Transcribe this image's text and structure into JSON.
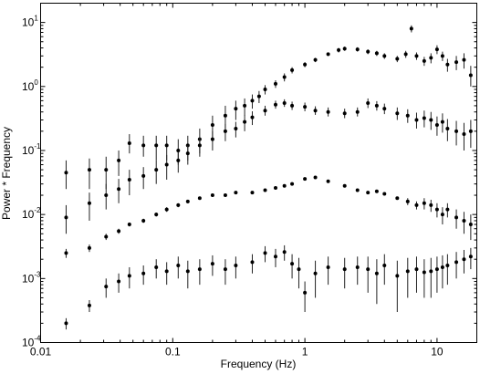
{
  "chart_data": {
    "type": "scatter",
    "title": "",
    "xlabel": "Frequency (Hz)",
    "ylabel": "Power * Frequency",
    "xscale": "log",
    "yscale": "log",
    "xlim": [
      0.01,
      20
    ],
    "ylim": [
      0.0001,
      20
    ],
    "grid": false,
    "legend": "none",
    "x_ticks": [
      {
        "value": 0.01,
        "label": "0.01"
      },
      {
        "value": 0.1,
        "label": "0.1"
      },
      {
        "value": 1,
        "label": "1"
      },
      {
        "value": 10,
        "label": "10"
      }
    ],
    "y_ticks": [
      {
        "value": 0.0001,
        "base": "10",
        "exp": "-4"
      },
      {
        "value": 0.001,
        "base": "10",
        "exp": "-3"
      },
      {
        "value": 0.01,
        "base": "10",
        "exp": "-2"
      },
      {
        "value": 0.1,
        "base": "10",
        "exp": "-1"
      },
      {
        "value": 1,
        "base": "10",
        "exp": "0"
      },
      {
        "value": 10,
        "base": "10",
        "exp": "1"
      }
    ],
    "series": [
      {
        "x": [
          0.0156,
          0.0234,
          0.0313,
          0.039,
          0.047,
          0.06,
          0.075,
          0.09,
          0.11,
          0.13,
          0.16,
          0.2,
          0.25,
          0.3,
          0.35,
          0.4,
          0.45,
          0.5,
          0.6,
          0.7,
          0.8,
          1.0,
          1.2,
          1.5,
          1.8,
          2.0,
          2.5,
          3.0,
          3.5,
          4.0,
          5.0,
          5.8,
          6.4,
          7.0,
          8.0,
          9.0,
          10.0,
          11.0,
          12.0,
          14.0,
          16.0,
          18.0
        ],
        "values": [
          0.045,
          0.05,
          0.05,
          0.07,
          0.13,
          0.12,
          0.12,
          0.12,
          0.1,
          0.12,
          0.15,
          0.25,
          0.35,
          0.45,
          0.5,
          0.6,
          0.7,
          0.9,
          1.1,
          1.4,
          1.8,
          2.2,
          2.6,
          3.2,
          3.7,
          3.9,
          3.8,
          3.5,
          3.3,
          3.0,
          2.7,
          3.2,
          8.0,
          3.0,
          2.5,
          2.8,
          3.8,
          3.0,
          2.2,
          2.4,
          2.6,
          1.5
        ],
        "err_low": [
          0.025,
          0.025,
          0.025,
          0.04,
          0.09,
          0.08,
          0.07,
          0.07,
          0.06,
          0.07,
          0.09,
          0.15,
          0.2,
          0.3,
          0.35,
          0.45,
          0.55,
          0.75,
          0.95,
          1.2,
          1.6,
          2.0,
          2.4,
          3.0,
          3.4,
          3.6,
          3.5,
          3.2,
          3.0,
          2.7,
          2.4,
          2.8,
          7.0,
          2.6,
          2.1,
          2.3,
          3.2,
          2.5,
          1.7,
          1.8,
          1.9,
          1.0
        ],
        "err_high": [
          0.07,
          0.075,
          0.08,
          0.1,
          0.18,
          0.17,
          0.17,
          0.17,
          0.15,
          0.17,
          0.22,
          0.35,
          0.5,
          0.6,
          0.65,
          0.75,
          0.85,
          1.05,
          1.25,
          1.6,
          2.0,
          2.4,
          2.8,
          3.4,
          4.0,
          4.2,
          4.1,
          3.8,
          3.6,
          3.3,
          3.0,
          3.6,
          9.0,
          3.4,
          2.9,
          3.3,
          4.4,
          3.5,
          2.7,
          3.0,
          3.3,
          2.1
        ]
      },
      {
        "x": [
          0.0156,
          0.0234,
          0.0313,
          0.039,
          0.047,
          0.06,
          0.075,
          0.09,
          0.11,
          0.13,
          0.16,
          0.2,
          0.25,
          0.3,
          0.35,
          0.4,
          0.5,
          0.6,
          0.7,
          0.8,
          1.0,
          1.2,
          1.5,
          2.0,
          2.5,
          3.0,
          3.5,
          4.0,
          5.0,
          6.0,
          7.0,
          8.0,
          9.0,
          10.0,
          11.0,
          12.0,
          14.0,
          16.0,
          18.0
        ],
        "values": [
          0.009,
          0.015,
          0.02,
          0.025,
          0.035,
          0.04,
          0.05,
          0.06,
          0.07,
          0.09,
          0.12,
          0.15,
          0.2,
          0.22,
          0.28,
          0.33,
          0.42,
          0.52,
          0.55,
          0.5,
          0.48,
          0.42,
          0.4,
          0.38,
          0.4,
          0.55,
          0.5,
          0.45,
          0.38,
          0.35,
          0.3,
          0.32,
          0.3,
          0.25,
          0.28,
          0.22,
          0.2,
          0.18,
          0.2
        ],
        "err_low": [
          0.005,
          0.008,
          0.012,
          0.015,
          0.02,
          0.025,
          0.03,
          0.035,
          0.045,
          0.06,
          0.08,
          0.1,
          0.14,
          0.16,
          0.2,
          0.25,
          0.35,
          0.45,
          0.48,
          0.43,
          0.41,
          0.36,
          0.34,
          0.32,
          0.34,
          0.46,
          0.42,
          0.37,
          0.3,
          0.27,
          0.22,
          0.23,
          0.21,
          0.17,
          0.19,
          0.14,
          0.12,
          0.1,
          0.11
        ],
        "err_high": [
          0.014,
          0.022,
          0.03,
          0.036,
          0.05,
          0.055,
          0.07,
          0.085,
          0.095,
          0.12,
          0.16,
          0.2,
          0.26,
          0.28,
          0.36,
          0.41,
          0.5,
          0.6,
          0.63,
          0.58,
          0.56,
          0.49,
          0.47,
          0.45,
          0.47,
          0.65,
          0.59,
          0.54,
          0.47,
          0.44,
          0.39,
          0.42,
          0.4,
          0.34,
          0.38,
          0.31,
          0.29,
          0.27,
          0.3
        ]
      },
      {
        "x": [
          0.0156,
          0.0234,
          0.0313,
          0.039,
          0.047,
          0.06,
          0.075,
          0.09,
          0.11,
          0.13,
          0.16,
          0.2,
          0.25,
          0.3,
          0.4,
          0.5,
          0.6,
          0.7,
          0.8,
          1.0,
          1.2,
          1.5,
          2.0,
          2.5,
          3.0,
          3.5,
          4.0,
          5.0,
          6.0,
          7.0,
          8.0,
          9.0,
          10.0,
          11.0,
          12.0,
          14.0,
          16.0,
          18.0
        ],
        "values": [
          0.0025,
          0.003,
          0.0045,
          0.0055,
          0.007,
          0.008,
          0.01,
          0.012,
          0.014,
          0.016,
          0.018,
          0.02,
          0.02,
          0.022,
          0.022,
          0.024,
          0.026,
          0.028,
          0.03,
          0.036,
          0.038,
          0.033,
          0.028,
          0.024,
          0.022,
          0.023,
          0.021,
          0.018,
          0.016,
          0.014,
          0.015,
          0.014,
          0.012,
          0.01,
          0.012,
          0.009,
          0.008,
          0.007
        ],
        "err_low": [
          0.0021,
          0.0026,
          0.004,
          0.005,
          0.0065,
          0.0074,
          0.0093,
          0.011,
          0.013,
          0.015,
          0.017,
          0.019,
          0.019,
          0.021,
          0.021,
          0.023,
          0.025,
          0.027,
          0.029,
          0.035,
          0.037,
          0.032,
          0.027,
          0.023,
          0.021,
          0.022,
          0.02,
          0.017,
          0.014,
          0.012,
          0.012,
          0.011,
          0.009,
          0.007,
          0.009,
          0.006,
          0.005,
          0.004
        ],
        "err_high": [
          0.0029,
          0.0034,
          0.005,
          0.006,
          0.0075,
          0.0086,
          0.0107,
          0.013,
          0.015,
          0.017,
          0.019,
          0.021,
          0.021,
          0.023,
          0.023,
          0.025,
          0.027,
          0.029,
          0.031,
          0.037,
          0.039,
          0.034,
          0.029,
          0.025,
          0.023,
          0.024,
          0.022,
          0.019,
          0.018,
          0.016,
          0.018,
          0.017,
          0.015,
          0.013,
          0.015,
          0.012,
          0.011,
          0.01
        ]
      },
      {
        "x": [
          0.0156,
          0.0234,
          0.0313,
          0.039,
          0.047,
          0.06,
          0.075,
          0.09,
          0.11,
          0.13,
          0.16,
          0.2,
          0.25,
          0.3,
          0.4,
          0.5,
          0.6,
          0.7,
          0.8,
          0.9,
          1.0,
          1.2,
          1.5,
          2.0,
          2.5,
          3.0,
          3.5,
          4.0,
          5.0,
          6.0,
          7.0,
          8.0,
          9.0,
          10.0,
          11.0,
          12.0,
          14.0,
          16.0,
          18.0
        ],
        "values": [
          0.0002,
          0.00038,
          0.00075,
          0.0009,
          0.0011,
          0.0012,
          0.0015,
          0.0013,
          0.0016,
          0.0013,
          0.0014,
          0.0017,
          0.0014,
          0.0016,
          0.0018,
          0.0025,
          0.0022,
          0.0026,
          0.0017,
          0.0014,
          0.0006,
          0.0012,
          0.0015,
          0.0014,
          0.0015,
          0.0014,
          0.0012,
          0.0016,
          0.0011,
          0.0013,
          0.0014,
          0.00125,
          0.0013,
          0.0014,
          0.0015,
          0.0016,
          0.0018,
          0.002,
          0.0022
        ],
        "err_low": [
          0.00016,
          0.0003,
          0.0005,
          0.0006,
          0.0007,
          0.0008,
          0.001,
          0.0008,
          0.001,
          0.0007,
          0.0008,
          0.0011,
          0.0008,
          0.001,
          0.0012,
          0.0018,
          0.0015,
          0.0019,
          0.001,
          0.0007,
          0.0003,
          0.0005,
          0.0008,
          0.0007,
          0.0008,
          0.0006,
          0.0004,
          0.0008,
          0.0003,
          0.0005,
          0.0006,
          0.0005,
          0.0005,
          0.0006,
          0.0007,
          0.0008,
          0.001,
          0.0012,
          0.0014
        ],
        "err_high": [
          0.00024,
          0.00046,
          0.001,
          0.0012,
          0.0015,
          0.0016,
          0.002,
          0.0018,
          0.0022,
          0.0019,
          0.002,
          0.0023,
          0.002,
          0.0022,
          0.0024,
          0.0032,
          0.0029,
          0.0033,
          0.0024,
          0.0021,
          0.0009,
          0.0019,
          0.0022,
          0.0021,
          0.0022,
          0.0022,
          0.002,
          0.0024,
          0.0019,
          0.0021,
          0.0022,
          0.002,
          0.0021,
          0.0022,
          0.0023,
          0.0024,
          0.0026,
          0.0028,
          0.003
        ]
      }
    ]
  }
}
